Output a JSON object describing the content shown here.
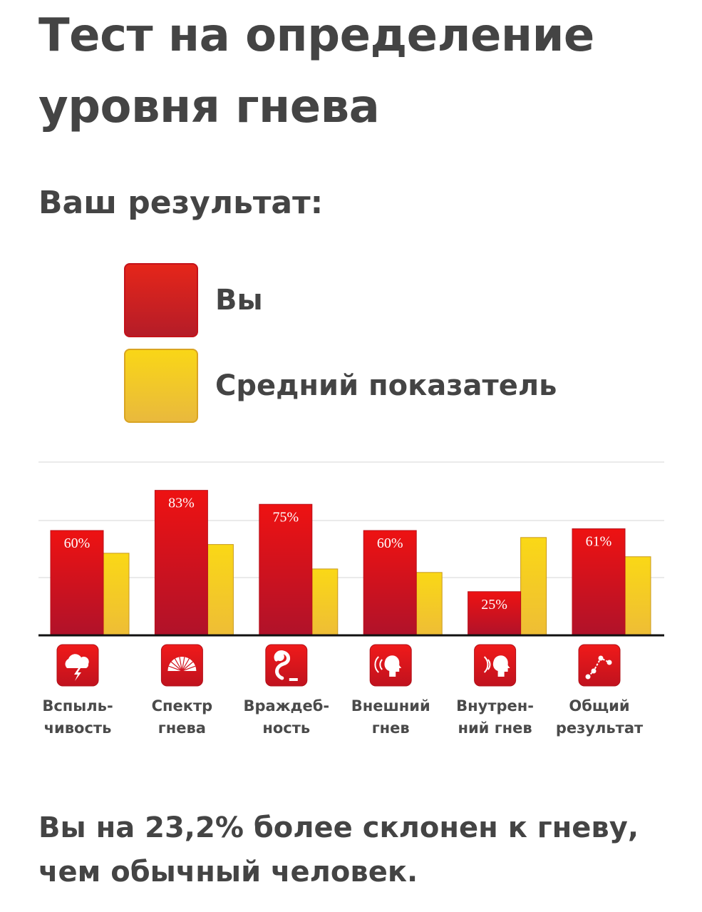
{
  "title": "Тест на определение уровня гнева",
  "subtitle": "Ваш результат:",
  "legend": [
    {
      "label": "Вы",
      "color": "#e01b1b"
    },
    {
      "label": "Средний показатель",
      "color": "#f7cc1e"
    }
  ],
  "chart_data": {
    "type": "bar",
    "categories": [
      [
        "Вспыль-",
        "чивость"
      ],
      [
        "Спектр",
        "гнева"
      ],
      [
        "Враждеб-",
        "ность"
      ],
      [
        "Внешний",
        "гнев"
      ],
      [
        "Внутрен-",
        "ний гнев"
      ],
      [
        "Общий",
        "результат"
      ]
    ],
    "category_icons": [
      "lightning-cloud-icon",
      "spectrum-fan-icon",
      "cobra-icon",
      "speaking-head-icon",
      "inner-voice-head-icon",
      "graph-chart-icon"
    ],
    "series": [
      {
        "name": "Вы",
        "values": [
          60,
          83,
          75,
          60,
          25,
          61
        ],
        "labels": [
          "60%",
          "83%",
          "75%",
          "60%",
          "25%",
          "61%"
        ],
        "color": "#e01b1b"
      },
      {
        "name": "Средний показатель",
        "values": [
          47,
          52,
          38,
          36,
          56,
          45
        ],
        "color": "#f7cc1e"
      }
    ],
    "ylim": [
      0,
      100
    ],
    "grid": true,
    "legend_position": "top"
  },
  "conclusion": "Вы на 23,2% более склонен к гневу, чем обычный человек."
}
